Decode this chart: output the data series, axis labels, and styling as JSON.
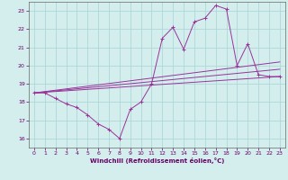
{
  "xlabel": "Windchill (Refroidissement éolien,°C)",
  "ylabel": "",
  "bg_color": "#d4eeee",
  "grid_color": "#aed8d8",
  "line_color": "#993399",
  "xlim": [
    -0.5,
    23.5
  ],
  "ylim": [
    15.5,
    23.5
  ],
  "yticks": [
    16,
    17,
    18,
    19,
    20,
    21,
    22,
    23
  ],
  "xticks": [
    0,
    1,
    2,
    3,
    4,
    5,
    6,
    7,
    8,
    9,
    10,
    11,
    12,
    13,
    14,
    15,
    16,
    17,
    18,
    19,
    20,
    21,
    22,
    23
  ],
  "series_main": {
    "x": [
      0,
      1,
      2,
      3,
      4,
      5,
      6,
      7,
      8,
      9,
      10,
      11,
      12,
      13,
      14,
      15,
      16,
      17,
      18,
      19,
      20,
      21,
      22,
      23
    ],
    "y": [
      18.5,
      18.5,
      18.2,
      17.9,
      17.7,
      17.3,
      16.8,
      16.5,
      16.0,
      17.6,
      18.0,
      19.0,
      21.5,
      22.1,
      20.9,
      22.4,
      22.6,
      23.3,
      23.1,
      20.0,
      21.2,
      19.5,
      19.4,
      19.4
    ]
  },
  "series_lines": [
    {
      "x": [
        0,
        23
      ],
      "y": [
        18.5,
        19.4
      ]
    },
    {
      "x": [
        0,
        23
      ],
      "y": [
        18.5,
        19.8
      ]
    },
    {
      "x": [
        0,
        23
      ],
      "y": [
        18.5,
        20.2
      ]
    }
  ]
}
